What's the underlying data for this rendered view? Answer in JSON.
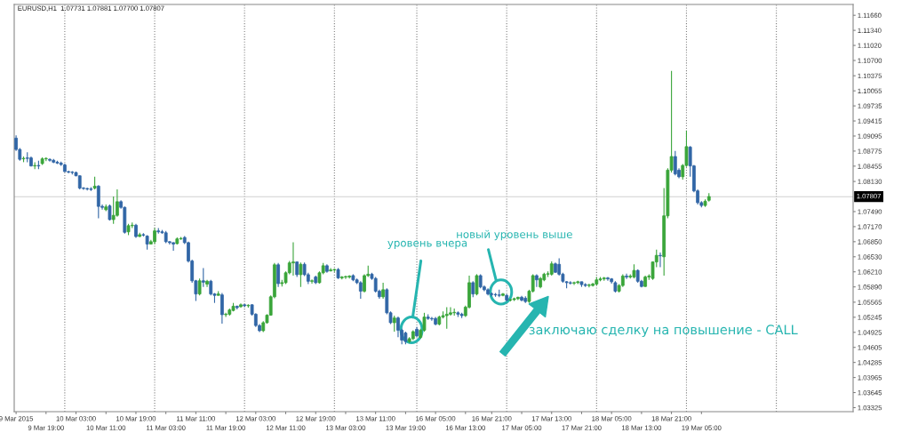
{
  "chart_data": {
    "type": "candlestick",
    "title": "EURUSD,H1  1.07731 1.07881 1.07700 1.07807",
    "colors": [
      "#3166a6",
      "#3166a6",
      "#3aa53a",
      "#3166a6",
      "#3166a6",
      "#3aa53a",
      "#3166a6",
      "#3aa53a",
      "#3aa53a",
      "#3166a6",
      "#3166a6",
      "#3166a6",
      "#3166a6",
      "#3166a6",
      "#3166a6",
      "#3166a6",
      "#3166a6",
      "#3166a6",
      "#3166a6",
      "#3166a6",
      "#3166a6",
      "#3aa53a",
      "#3166a6",
      "#3166a6",
      "#3aa53a",
      "#3166a6",
      "#3aa53a",
      "#3aa53a",
      "#3166a6",
      "#3166a6",
      "#3aa53a",
      "#3aa53a",
      "#3166a6",
      "#3aa53a",
      "#3166a6",
      "#3166a6",
      "#3aa53a",
      "#3aa53a",
      "#3166a6",
      "#3166a6",
      "#3166a6",
      "#3166a6",
      "#3166a6",
      "#3aa53a",
      "#3aa53a",
      "#3166a6",
      "#3166a6",
      "#3166a6",
      "#3166a6",
      "#3aa53a",
      "#3166a6",
      "#3aa53a",
      "#3166a6",
      "#3166a6",
      "#3aa53a",
      "#3166a6",
      "#3aa53a",
      "#3aa53a",
      "#3aa53a",
      "#3166a6",
      "#3aa53a",
      "#3166a6",
      "#3aa53a",
      "#3166a6",
      "#3166a6",
      "#3166a6",
      "#3aa53a",
      "#3aa53a",
      "#3aa53a",
      "#3aa53a",
      "#3166a6",
      "#3aa53a",
      "#3aa53a",
      "#3aa53a",
      "#3aa53a",
      "#3166a6",
      "#3aa53a",
      "#3166a6",
      "#3166a6",
      "#3aa53a",
      "#3166a6",
      "#3aa53a",
      "#3aa53a",
      "#3166a6",
      "#3aa53a",
      "#3aa53a",
      "#3166a6",
      "#3aa53a",
      "#3aa53a",
      "#3aa53a",
      "#3166a6",
      "#3166a6",
      "#3166a6",
      "#3aa53a",
      "#3aa53a",
      "#3166a6",
      "#3166a6",
      "#3166a6",
      "#3aa53a",
      "#3166a6",
      "#3166a6",
      "#3aa53a",
      "#3166a6",
      "#3166a6",
      "#3166a6",
      "#3aa53a",
      "#3aa53a",
      "#3166a6",
      "#3aa53a",
      "#3aa53a",
      "#3166a6",
      "#3166a6",
      "#3166a6",
      "#3aa53a",
      "#3aa53a",
      "#3aa53a",
      "#3aa53a",
      "#3aa53a",
      "#3166a6",
      "#3166a6",
      "#3aa53a",
      "#3aa53a",
      "#3166a6",
      "#3aa53a",
      "#3166a6",
      "#3166a6",
      "#3166a6",
      "#3166a6",
      "#3166a6",
      "#3166a6",
      "#3aa53a",
      "#3166a6",
      "#3aa53a",
      "#3aa53a",
      "#3aa53a",
      "#3166a6",
      "#3166a6",
      "#3aa53a",
      "#3aa53a",
      "#3166a6",
      "#3aa53a",
      "#3aa53a",
      "#3aa53a",
      "#3aa53a",
      "#3166a6",
      "#3166a6",
      "#3166a6",
      "#3166a6",
      "#3166a6",
      "#3aa53a",
      "#3aa53a",
      "#3166a6",
      "#3166a6",
      "#3aa53a",
      "#3aa53a",
      "#3aa53a",
      "#3aa53a",
      "#3aa53a",
      "#3166a6",
      "#3166a6",
      "#3166a6",
      "#3aa53a",
      "#3aa53a",
      "#3166a6",
      "#3aa53a",
      "#3aa53a",
      "#3166a6",
      "#3166a6",
      "#3aa53a",
      "#3aa53a",
      "#3aa53a",
      "#3aa53a",
      "#3166a6",
      "#3aa53a",
      "#3aa53a",
      "#3aa53a",
      "#3166a6",
      "#3166a6",
      "#3aa53a",
      "#3aa53a",
      "#3166a6",
      "#3166a6",
      "#3166a6",
      "#3166a6",
      "#3aa53a",
      "#3aa53a",
      null,
      null,
      null,
      null,
      null,
      null,
      null,
      null,
      null,
      null,
      null,
      null,
      null,
      null,
      null,
      null,
      null,
      null,
      null,
      null,
      null,
      null,
      null,
      null,
      null,
      null,
      null,
      null,
      null,
      null,
      null,
      null,
      null,
      null,
      null,
      null,
      null,
      null
    ],
    "categories": [
      "9 Mar 2015",
      null,
      null,
      null,
      null,
      null,
      null,
      null,
      "9 Mar 19:00",
      null,
      null,
      null,
      null,
      null,
      null,
      null,
      "10 Mar 03:00",
      null,
      null,
      null,
      null,
      null,
      null,
      null,
      "10 Mar 11:00",
      null,
      null,
      null,
      null,
      null,
      null,
      null,
      "10 Mar 19:00",
      null,
      null,
      null,
      null,
      null,
      null,
      null,
      "11 Mar 03:00",
      null,
      null,
      null,
      null,
      null,
      null,
      null,
      "11 Mar 11:00",
      null,
      null,
      null,
      null,
      null,
      null,
      null,
      "11 Mar 19:00",
      null,
      null,
      null,
      null,
      null,
      null,
      null,
      "12 Mar 03:00",
      null,
      null,
      null,
      null,
      null,
      null,
      null,
      "12 Mar 11:00",
      null,
      null,
      null,
      null,
      null,
      null,
      null,
      "12 Mar 19:00",
      null,
      null,
      null,
      null,
      null,
      null,
      null,
      "13 Mar 03:00",
      null,
      null,
      null,
      null,
      null,
      null,
      null,
      "13 Mar 11:00",
      null,
      null,
      null,
      null,
      null,
      null,
      null,
      "13 Mar 19:00",
      null,
      null,
      null,
      null,
      null,
      null,
      null,
      "16 Mar 05:00",
      null,
      null,
      null,
      null,
      null,
      null,
      null,
      "16 Mar 13:00",
      null,
      null,
      null,
      null,
      null,
      null,
      "16 Mar 21:00",
      null,
      null,
      null,
      null,
      null,
      null,
      null,
      "17 Mar 05:00",
      null,
      null,
      null,
      null,
      null,
      null,
      null,
      "17 Mar 13:00",
      null,
      null,
      null,
      null,
      null,
      null,
      null,
      "17 Mar 21:00",
      null,
      null,
      null,
      null,
      null,
      null,
      null,
      "18 Mar 05:00",
      null,
      null,
      null,
      null,
      null,
      null,
      null,
      "18 Mar 13:00",
      null,
      null,
      null,
      null,
      null,
      null,
      null,
      "18 Mar 21:00",
      null,
      null,
      null,
      null,
      null,
      null,
      null,
      "19 Mar 05:00",
      null,
      null,
      null,
      null,
      null,
      null,
      null,
      null,
      null,
      null,
      null,
      null,
      null,
      null,
      null,
      null,
      null,
      null,
      null,
      null,
      null,
      null,
      null,
      null,
      null,
      null,
      null,
      null,
      null,
      null,
      null,
      null,
      null,
      null,
      null,
      null,
      null,
      null,
      null,
      null
    ],
    "ohlc": [
      [
        1.0905,
        1.0911,
        1.0878,
        1.0881
      ],
      [
        1.0881,
        1.0884,
        1.0857,
        1.086
      ],
      [
        1.0861,
        1.0866,
        1.0854,
        1.0862
      ],
      [
        1.0863,
        1.0875,
        1.0854,
        1.0862
      ],
      [
        1.0863,
        1.0866,
        1.0845,
        1.0846
      ],
      [
        1.0846,
        1.0854,
        1.0839,
        1.0847
      ],
      [
        1.0847,
        1.0857,
        1.0839,
        1.0846
      ],
      [
        1.0851,
        1.0864,
        1.0848,
        1.0861
      ],
      [
        1.0861,
        1.0864,
        1.0856,
        1.0862
      ],
      [
        1.086,
        1.0862,
        1.0855,
        1.0858
      ],
      [
        1.0858,
        1.0861,
        1.0852,
        1.0854
      ],
      [
        1.0854,
        1.0857,
        1.085,
        1.0852
      ],
      [
        1.0852,
        1.0855,
        1.0846,
        1.0849
      ],
      [
        1.0848,
        1.0851,
        1.0833,
        1.0834
      ],
      [
        1.0834,
        1.0836,
        1.083,
        1.0833
      ],
      [
        1.0833,
        1.0835,
        1.0828,
        1.0832
      ],
      [
        1.0832,
        1.0834,
        1.0824,
        1.0825
      ],
      [
        1.0825,
        1.0826,
        1.0796,
        1.0799
      ],
      [
        1.0799,
        1.0801,
        1.0795,
        1.0798
      ],
      [
        1.0798,
        1.08,
        1.0794,
        1.0797
      ],
      [
        1.0797,
        1.0801,
        1.0793,
        1.0796
      ],
      [
        1.0799,
        1.0823,
        1.0796,
        1.0803
      ],
      [
        1.0803,
        1.0805,
        1.0735,
        1.076
      ],
      [
        1.076,
        1.0764,
        1.0753,
        1.0758
      ],
      [
        1.0753,
        1.0764,
        1.075,
        1.0759
      ],
      [
        1.0761,
        1.0764,
        1.073,
        1.0732
      ],
      [
        1.0732,
        1.0781,
        1.0723,
        1.0741
      ],
      [
        1.0741,
        1.0796,
        1.0738,
        1.077
      ],
      [
        1.077,
        1.0773,
        1.0755,
        1.0758
      ],
      [
        1.0758,
        1.076,
        1.0702,
        1.0705
      ],
      [
        1.0706,
        1.0723,
        1.0699,
        1.0719
      ],
      [
        1.0719,
        1.0726,
        1.0714,
        1.072
      ],
      [
        1.072,
        1.0723,
        1.0693,
        1.0696
      ],
      [
        1.0696,
        1.0704,
        1.0695,
        1.07
      ],
      [
        1.07,
        1.0703,
        1.0696,
        1.0699
      ],
      [
        1.0697,
        1.0699,
        1.0668,
        1.068
      ],
      [
        1.068,
        1.0689,
        1.068,
        1.0685
      ],
      [
        1.0685,
        1.0714,
        1.068,
        1.0708
      ],
      [
        1.0708,
        1.0714,
        1.0702,
        1.0706
      ],
      [
        1.0706,
        1.071,
        1.0702,
        1.0704
      ],
      [
        1.0704,
        1.0708,
        1.0682,
        1.0685
      ],
      [
        1.0685,
        1.0686,
        1.0679,
        1.0683
      ],
      [
        1.0683,
        1.0684,
        1.0666,
        1.068
      ],
      [
        1.0681,
        1.0694,
        1.0679,
        1.0691
      ],
      [
        1.0691,
        1.0695,
        1.0689,
        1.0692
      ],
      [
        1.0694,
        1.0697,
        1.068,
        1.0683
      ],
      [
        1.0683,
        1.0685,
        1.0641,
        1.0644
      ],
      [
        1.0644,
        1.0647,
        1.0598,
        1.0602
      ],
      [
        1.0602,
        1.0604,
        1.0559,
        1.0574
      ],
      [
        1.0574,
        1.0607,
        1.0571,
        1.0602
      ],
      [
        1.0602,
        1.0629,
        1.0589,
        1.0599
      ],
      [
        1.0595,
        1.0604,
        1.0589,
        1.0601
      ],
      [
        1.0601,
        1.0604,
        1.0571,
        1.0574
      ],
      [
        1.0574,
        1.0576,
        1.0555,
        1.0571
      ],
      [
        1.0571,
        1.058,
        1.0571,
        1.0574
      ],
      [
        1.0572,
        1.0576,
        1.0511,
        1.053
      ],
      [
        1.053,
        1.0534,
        1.0525,
        1.0531
      ],
      [
        1.0531,
        1.0543,
        1.0528,
        1.054
      ],
      [
        1.0539,
        1.0555,
        1.0537,
        1.0548
      ],
      [
        1.0548,
        1.0549,
        1.0541,
        1.0545
      ],
      [
        1.0547,
        1.0554,
        1.0545,
        1.0551
      ],
      [
        1.0551,
        1.0553,
        1.0546,
        1.0549
      ],
      [
        1.0549,
        1.0552,
        1.0545,
        1.055
      ],
      [
        1.0551,
        1.0552,
        1.0528,
        1.0531
      ],
      [
        1.0531,
        1.0533,
        1.0504,
        1.0507
      ],
      [
        1.0507,
        1.051,
        1.0493,
        1.0496
      ],
      [
        1.0496,
        1.0516,
        1.0493,
        1.0513
      ],
      [
        1.0513,
        1.0531,
        1.0511,
        1.0529
      ],
      [
        1.0529,
        1.0571,
        1.0528,
        1.0568
      ],
      [
        1.0568,
        1.064,
        1.0565,
        1.0636
      ],
      [
        1.0636,
        1.064,
        1.0589,
        1.0596
      ],
      [
        1.0596,
        1.0604,
        1.059,
        1.0598
      ],
      [
        1.0598,
        1.0622,
        1.0595,
        1.0619
      ],
      [
        1.0619,
        1.0644,
        1.0616,
        1.064
      ],
      [
        1.064,
        1.0684,
        1.0613,
        1.0642
      ],
      [
        1.0642,
        1.0643,
        1.061,
        1.0615
      ],
      [
        1.0615,
        1.0641,
        1.0589,
        1.0637
      ],
      [
        1.0637,
        1.0641,
        1.0612,
        1.0615
      ],
      [
        1.0615,
        1.0619,
        1.0595,
        1.0601
      ],
      [
        1.0601,
        1.0605,
        1.0596,
        1.0602
      ],
      [
        1.061,
        1.0613,
        1.0595,
        1.0598
      ],
      [
        1.0598,
        1.0622,
        1.0596,
        1.0619
      ],
      [
        1.0619,
        1.064,
        1.0616,
        1.0634
      ],
      [
        1.0634,
        1.0637,
        1.0619,
        1.0622
      ],
      [
        1.0623,
        1.0629,
        1.0622,
        1.0625
      ],
      [
        1.0625,
        1.0628,
        1.0621,
        1.0626
      ],
      [
        1.0626,
        1.0629,
        1.0606,
        1.0608
      ],
      [
        1.0608,
        1.0612,
        1.0605,
        1.061
      ],
      [
        1.061,
        1.0613,
        1.0606,
        1.0611
      ],
      [
        1.061,
        1.0614,
        1.0607,
        1.0612
      ],
      [
        1.0613,
        1.0616,
        1.0601,
        1.0604
      ],
      [
        1.0604,
        1.0607,
        1.0595,
        1.0598
      ],
      [
        1.0598,
        1.0601,
        1.0564,
        1.058
      ],
      [
        1.058,
        1.0616,
        1.0577,
        1.0613
      ],
      [
        1.0613,
        1.0634,
        1.061,
        1.0616
      ],
      [
        1.0616,
        1.0619,
        1.0604,
        1.0607
      ],
      [
        1.0607,
        1.061,
        1.0577,
        1.058
      ],
      [
        1.058,
        1.0583,
        1.0564,
        1.0568
      ],
      [
        1.0568,
        1.0598,
        1.0564,
        1.0583
      ],
      [
        1.0583,
        1.0586,
        1.0531,
        1.0534
      ],
      [
        1.0534,
        1.0537,
        1.051,
        1.0513
      ],
      [
        1.0513,
        1.0528,
        1.0494,
        1.0523
      ],
      [
        1.0523,
        1.0526,
        1.0482,
        1.0497
      ],
      [
        1.0497,
        1.05,
        1.0467,
        1.0476
      ],
      [
        1.0491,
        1.0494,
        1.0467,
        1.0473
      ],
      [
        1.0473,
        1.0482,
        1.047,
        1.0479
      ],
      [
        1.0479,
        1.0497,
        1.0476,
        1.0494
      ],
      [
        1.0499,
        1.0504,
        1.0482,
        1.0485
      ],
      [
        1.0482,
        1.05,
        1.0479,
        1.0497
      ],
      [
        1.0497,
        1.0534,
        1.0494,
        1.0525
      ],
      [
        1.0525,
        1.0531,
        1.0519,
        1.0522
      ],
      [
        1.0522,
        1.0525,
        1.0517,
        1.0521
      ],
      [
        1.0522,
        1.0525,
        1.0507,
        1.051
      ],
      [
        1.051,
        1.0528,
        1.0507,
        1.0525
      ],
      [
        1.0525,
        1.0537,
        1.0522,
        1.0528
      ],
      [
        1.0528,
        1.0546,
        1.05,
        1.0531
      ],
      [
        1.0531,
        1.0546,
        1.0528,
        1.0534
      ],
      [
        1.0534,
        1.0543,
        1.0528,
        1.0535
      ],
      [
        1.0534,
        1.0537,
        1.0525,
        1.0531
      ],
      [
        1.0531,
        1.0534,
        1.0523,
        1.0528
      ],
      [
        1.0528,
        1.0549,
        1.0525,
        1.0546
      ],
      [
        1.0546,
        1.0613,
        1.0543,
        1.0598
      ],
      [
        1.0598,
        1.0601,
        1.0567,
        1.0574
      ],
      [
        1.0574,
        1.0616,
        1.0571,
        1.0613
      ],
      [
        1.0613,
        1.0616,
        1.0586,
        1.0589
      ],
      [
        1.0589,
        1.0592,
        1.058,
        1.0583
      ],
      [
        1.0583,
        1.0586,
        1.0571,
        1.0574
      ],
      [
        1.0574,
        1.0577,
        1.0569,
        1.0573
      ],
      [
        1.0573,
        1.0576,
        1.0568,
        1.0572
      ],
      [
        1.0572,
        1.0583,
        1.0567,
        1.0571
      ],
      [
        1.0571,
        1.0576,
        1.0569,
        1.0574
      ],
      [
        1.0571,
        1.0574,
        1.0558,
        1.0561
      ],
      [
        1.0561,
        1.0564,
        1.0558,
        1.0562
      ],
      [
        1.0562,
        1.0566,
        1.0559,
        1.0564
      ],
      [
        1.0564,
        1.0568,
        1.0561,
        1.0567
      ],
      [
        1.0567,
        1.057,
        1.0558,
        1.0561
      ],
      [
        1.0565,
        1.0569,
        1.0555,
        1.0558
      ],
      [
        1.0558,
        1.0583,
        1.0555,
        1.058
      ],
      [
        1.058,
        1.0616,
        1.0577,
        1.0613
      ],
      [
        1.0613,
        1.0616,
        1.0589,
        1.0604
      ],
      [
        1.0589,
        1.061,
        1.0586,
        1.0607
      ],
      [
        1.0604,
        1.0619,
        1.0601,
        1.0616
      ],
      [
        1.0616,
        1.0622,
        1.061,
        1.0617
      ],
      [
        1.0616,
        1.0643,
        1.0613,
        1.0638
      ],
      [
        1.0638,
        1.0641,
        1.0619,
        1.062
      ],
      [
        1.0637,
        1.065,
        1.0613,
        1.0616
      ],
      [
        1.0616,
        1.0619,
        1.0598,
        1.0601
      ],
      [
        1.06,
        1.0601,
        1.0586,
        1.0598
      ],
      [
        1.0598,
        1.0601,
        1.0594,
        1.0597
      ],
      [
        1.0597,
        1.06,
        1.0593,
        1.0598
      ],
      [
        1.0598,
        1.0602,
        1.0595,
        1.06
      ],
      [
        1.06,
        1.06,
        1.0589,
        1.0594
      ],
      [
        1.0594,
        1.0597,
        1.0589,
        1.0592
      ],
      [
        1.0592,
        1.0596,
        1.0588,
        1.0593
      ],
      [
        1.0592,
        1.0598,
        1.059,
        1.0595
      ],
      [
        1.0595,
        1.061,
        1.0592,
        1.0604
      ],
      [
        1.0604,
        1.061,
        1.0601,
        1.0606
      ],
      [
        1.0606,
        1.061,
        1.0602,
        1.0608
      ],
      [
        1.0608,
        1.061,
        1.0602,
        1.0606
      ],
      [
        1.0606,
        1.0608,
        1.0596,
        1.06
      ],
      [
        1.0598,
        1.0601,
        1.0577,
        1.058
      ],
      [
        1.058,
        1.0595,
        1.0577,
        1.0592
      ],
      [
        1.0592,
        1.0616,
        1.0589,
        1.0612
      ],
      [
        1.0612,
        1.0617,
        1.0606,
        1.061
      ],
      [
        1.061,
        1.0616,
        1.0607,
        1.0612
      ],
      [
        1.061,
        1.0637,
        1.0607,
        1.0624
      ],
      [
        1.0624,
        1.0626,
        1.0598,
        1.0601
      ],
      [
        1.0601,
        1.0604,
        1.0588,
        1.059
      ],
      [
        1.059,
        1.0613,
        1.0589,
        1.061
      ],
      [
        1.061,
        1.0616,
        1.0604,
        1.0612
      ],
      [
        1.0607,
        1.0643,
        1.0604,
        1.0642
      ],
      [
        1.0642,
        1.0668,
        1.0631,
        1.0656
      ],
      [
        1.0656,
        1.0662,
        1.0631,
        1.0655
      ],
      [
        1.0653,
        1.0799,
        1.0613,
        1.074
      ],
      [
        1.074,
        1.0841,
        1.0735,
        1.0837
      ],
      [
        1.0837,
        1.1048,
        1.0832,
        1.0866
      ],
      [
        1.0866,
        1.0878,
        1.0826,
        1.0829
      ],
      [
        1.0837,
        1.0841,
        1.082,
        1.0823
      ],
      [
        1.0823,
        1.085,
        1.0817,
        1.0847
      ],
      [
        1.0847,
        1.0921,
        1.0844,
        1.0887
      ],
      [
        1.0886,
        1.0888,
        1.0823,
        1.0846
      ],
      [
        1.0846,
        1.0848,
        1.079,
        1.0793
      ],
      [
        1.0793,
        1.0796,
        1.0764,
        1.0768
      ],
      [
        1.0768,
        1.0771,
        1.0758,
        1.0762
      ],
      [
        1.0762,
        1.0775,
        1.0759,
        1.0771
      ],
      [
        1.0773,
        1.0788,
        1.077,
        1.0781
      ],
      null,
      null,
      null,
      null,
      null,
      null,
      null,
      null,
      null,
      null,
      null,
      null,
      null,
      null,
      null,
      null,
      null,
      null,
      null,
      null,
      null,
      null,
      null,
      null,
      null,
      null,
      null,
      null,
      null,
      null,
      null,
      null,
      null,
      null,
      null,
      null,
      null,
      null
    ],
    "ylim": [
      1.0324,
      1.1189
    ],
    "yticks": [
      1.03325,
      1.03645,
      1.03965,
      1.04285,
      1.04605,
      1.04925,
      1.05245,
      1.05565,
      {
        "value": 1.0589,
        "label": "1.05890"
      },
      {
        "value": 1.0621,
        "label": "1.06210"
      },
      {
        "value": 1.0653,
        "label": "1.06530"
      },
      {
        "value": 1.0685,
        "label": "1.06850"
      },
      {
        "value": 1.0717,
        "label": "1.07170"
      },
      {
        "value": 1.0749,
        "label": "1.07490"
      },
      {
        "value": 1.0813,
        "label": "1.08130"
      },
      1.08455,
      1.08775,
      1.09095,
      1.09415,
      1.09735,
      1.10055,
      1.10375,
      {
        "value": 1.107,
        "label": "1.10700"
      },
      {
        "value": 1.1102,
        "label": "1.11020"
      },
      {
        "value": 1.1134,
        "label": "1.11340"
      },
      {
        "value": 1.1166,
        "label": "1.11660"
      }
    ],
    "ref_lines": [
      {
        "axis": "y",
        "value": 1.07807,
        "label": "1.07807",
        "color": "#d0d0d0",
        "line_style": "solid"
      }
    ],
    "annotations": [
      "уровень вчера",
      "новый уровень выше",
      "заключаю сделку на повышение - CALL"
    ]
  }
}
